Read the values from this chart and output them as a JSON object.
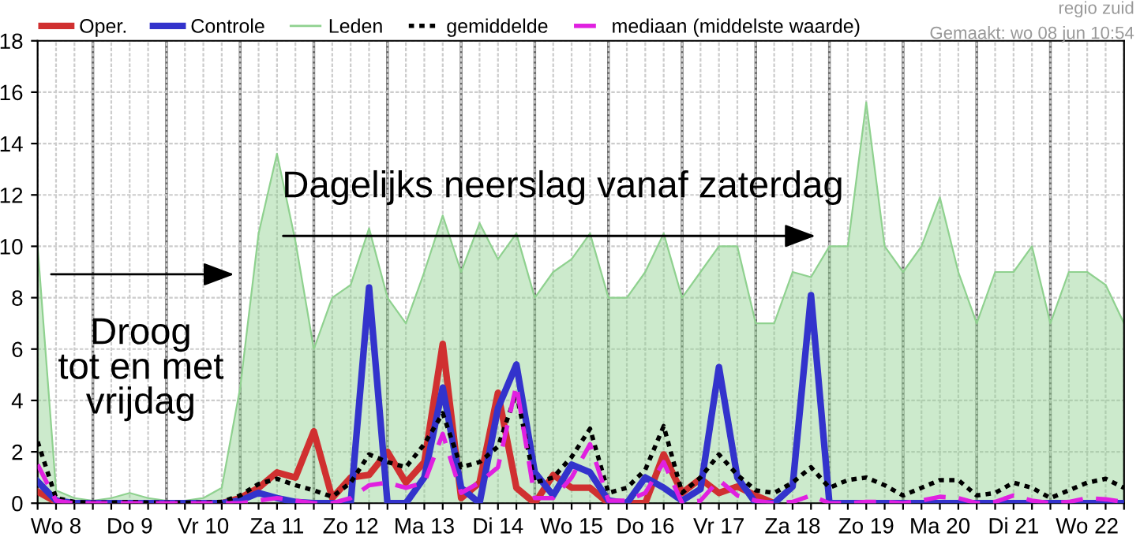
{
  "chart_data": {
    "type": "line",
    "annotations": [
      "regio zuid",
      "Gemaakt: wo 08 jun 10:54",
      "Dagelijks neerslag vanaf zaterdag",
      "Droog\ntot en met\nvrijdag"
    ],
    "categories": [
      null,
      "Wo 8",
      null,
      null,
      null,
      "Do 9",
      null,
      null,
      null,
      "Vr 10",
      null,
      null,
      null,
      "Za 11",
      null,
      null,
      null,
      "Zo 12",
      null,
      null,
      null,
      "Ma 13",
      null,
      null,
      null,
      "Di 14",
      null,
      null,
      null,
      "Wo 15",
      null,
      null,
      null,
      "Do 16",
      null,
      null,
      null,
      "Vr 17",
      null,
      null,
      null,
      "Za 18",
      null,
      null,
      null,
      "Zo 19",
      null,
      null,
      null,
      "Ma 20",
      null,
      null,
      null,
      "Di 21",
      null,
      null,
      null,
      "Wo 22",
      null,
      null
    ],
    "series": [
      {
        "name": "Oper.",
        "color": "#d03030",
        "values": [
          0.45,
          0.05,
          0,
          0,
          0,
          0,
          0,
          0,
          0,
          0,
          0,
          0.2,
          0.6,
          1.2,
          1.0,
          2.8,
          0.2,
          1.0,
          1.1,
          2.0,
          0.8,
          1.6,
          6.2,
          0.2,
          0.8,
          4.3,
          0.6,
          0,
          1.1,
          0.6,
          0.6,
          0,
          0,
          0,
          1.9,
          0.4,
          0.95,
          0.4,
          0.65,
          0.3,
          0,
          null,
          null,
          null,
          null,
          null,
          null,
          null,
          null,
          null,
          null,
          null,
          null,
          null,
          null,
          null,
          null,
          null,
          null,
          null
        ]
      },
      {
        "name": "Controle",
        "color": "#3333cc",
        "values": [
          0.85,
          0.1,
          0,
          0,
          0,
          0,
          0,
          0,
          0,
          0,
          0,
          0.1,
          0.4,
          0.2,
          0.05,
          0,
          0,
          0,
          8.4,
          0,
          0,
          1.0,
          4.5,
          0.6,
          0,
          3.7,
          5.4,
          1.2,
          0.3,
          1.5,
          1.2,
          0.1,
          0,
          1.0,
          0.6,
          0.1,
          0.55,
          5.3,
          1.0,
          0,
          0,
          0.65,
          8.1,
          0,
          0,
          0,
          0,
          0,
          0,
          0,
          0,
          0,
          0,
          0,
          0,
          0,
          0,
          0,
          0,
          0
        ]
      },
      {
        "name": "Leden",
        "type": "area",
        "color": "#8fd18f",
        "values": [
          10,
          0.5,
          0.2,
          0.1,
          0.2,
          0.4,
          0.2,
          0.1,
          0.1,
          0.2,
          0.6,
          4.5,
          10.5,
          13.6,
          10.2,
          6,
          8,
          8.5,
          10.7,
          8,
          7,
          9,
          11.2,
          9,
          10.9,
          9.5,
          10.5,
          8,
          9,
          9.5,
          10.5,
          8,
          8,
          9,
          10.5,
          8,
          9,
          10,
          10,
          7,
          7,
          9,
          8.8,
          10,
          10,
          15.6,
          10,
          9,
          10,
          11.9,
          9,
          7,
          9,
          9,
          10,
          7,
          9,
          9,
          8.5,
          7
        ]
      },
      {
        "name": "gemiddelde",
        "color": "#000000",
        "line_style": "dotted",
        "values": [
          2.4,
          0.2,
          0.05,
          0.02,
          0.02,
          0.05,
          0.02,
          0.02,
          0.02,
          0.02,
          0.05,
          0.3,
          0.75,
          0.95,
          0.7,
          0.5,
          0.25,
          0.8,
          1.9,
          1.6,
          1.4,
          2.3,
          3.5,
          1.4,
          1.6,
          2.2,
          4.3,
          0.8,
          1.0,
          1.8,
          2.9,
          0.4,
          0.6,
          1.3,
          3.0,
          0.4,
          1.0,
          1.9,
          1.1,
          0.5,
          0.4,
          0.8,
          1.4,
          0.6,
          0.9,
          1.0,
          0.7,
          0.3,
          0.6,
          0.9,
          0.9,
          0.3,
          0.4,
          0.8,
          0.6,
          0.2,
          0.5,
          0.8,
          0.95,
          0.6
        ]
      },
      {
        "name": "mediaan (middelste waarde)",
        "color": "#e020e0",
        "line_style": "dashed",
        "values": [
          1.5,
          0.1,
          0,
          0,
          0,
          0,
          0,
          0,
          0,
          0,
          0,
          0,
          0.1,
          0.2,
          0.1,
          0,
          0,
          0.2,
          0.7,
          0.8,
          0.6,
          0.8,
          2.7,
          0.4,
          0.8,
          1.4,
          4.6,
          0.2,
          0.2,
          1.0,
          2.3,
          0.1,
          0.1,
          0.4,
          1.6,
          0,
          0.1,
          0.9,
          0.3,
          0.1,
          0,
          0.05,
          0.3,
          0,
          0,
          0.05,
          0.05,
          0,
          0.1,
          0.25,
          0.2,
          0,
          0.05,
          0.3,
          0.1,
          0,
          0.05,
          0.2,
          0.15,
          0.05
        ]
      }
    ],
    "ylim": [
      0,
      18
    ],
    "yticks": [
      0,
      2,
      4,
      6,
      8,
      10,
      12,
      14,
      16,
      18
    ],
    "grid": true,
    "legend": "top",
    "marker": "none"
  }
}
